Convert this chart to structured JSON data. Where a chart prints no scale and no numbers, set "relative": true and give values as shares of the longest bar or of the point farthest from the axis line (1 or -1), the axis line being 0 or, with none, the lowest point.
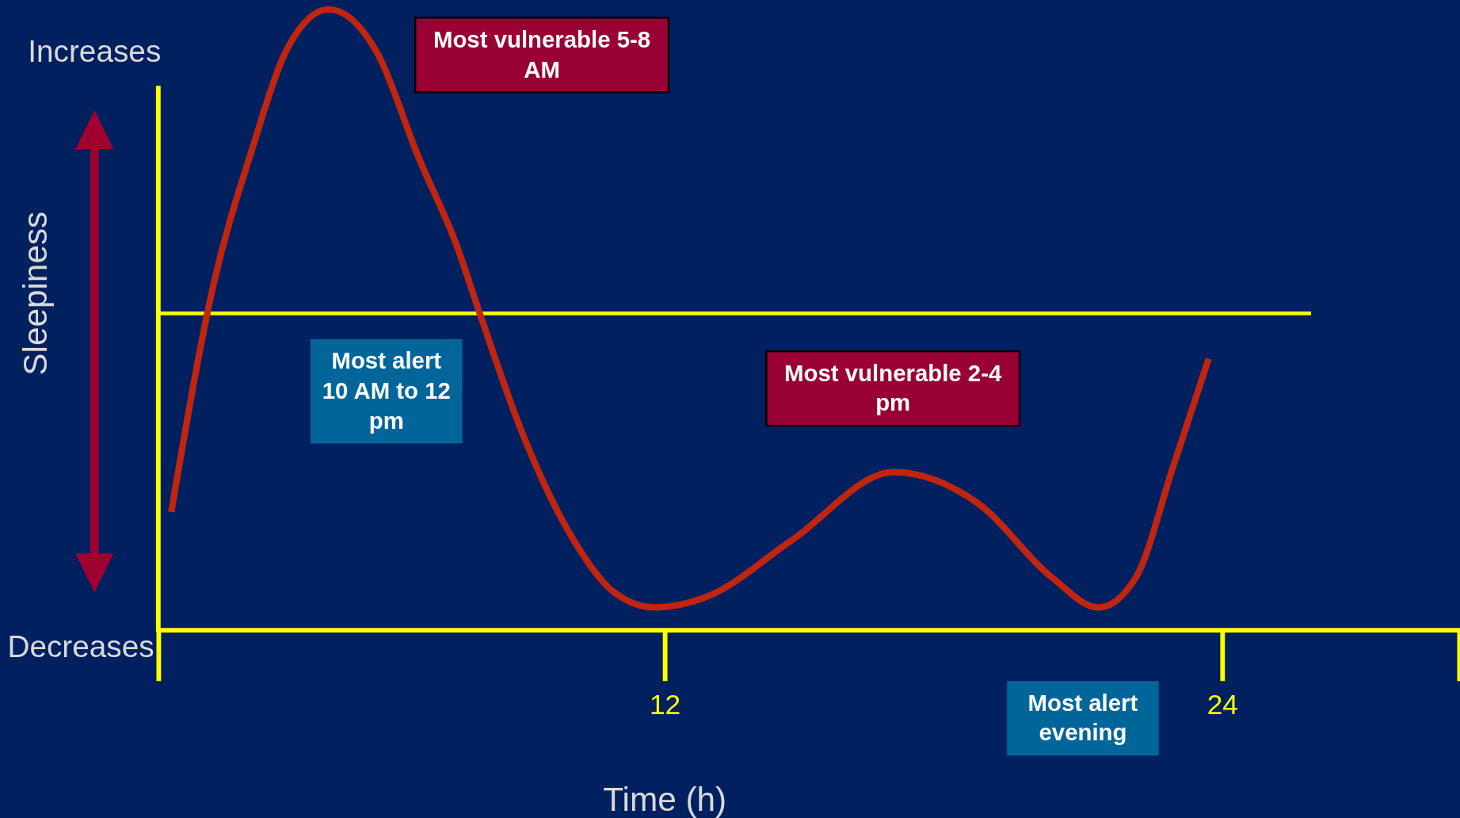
{
  "chart_data": {
    "type": "line",
    "relative": true,
    "xlabel": "Time (h)",
    "ylabel": "Sleepiness",
    "xlim": [
      1.1,
      29.1
    ],
    "xticks": [
      12,
      24
    ],
    "tick_labels": "x",
    "grid": false,
    "marker": "none",
    "line_style": "solid",
    "series": [
      {
        "color": "#c0250f",
        "x": [
          1.38,
          2.3,
          3.1,
          3.9,
          4.77,
          5.81,
          6.71,
          7.52,
          8.02,
          8.92,
          9.92,
          10.92,
          11.78,
          12.93,
          14.73,
          16.93,
          18.74,
          20.34,
          21.34,
          22.14,
          22.95,
          23.71
        ],
        "values": [
          0.19,
          0.56,
          0.77,
          0.94,
          1.0,
          0.93,
          0.76,
          0.62,
          0.51,
          0.32,
          0.16,
          0.06,
          0.036,
          0.054,
          0.144,
          0.254,
          0.204,
          0.084,
          0.036,
          0.084,
          0.264,
          0.437
        ]
      }
    ],
    "ref_lines": [
      {
        "axis": "y",
        "value": 0.51,
        "color": "#ffff00"
      }
    ],
    "annotations": [
      "Increases",
      "Decreases",
      "Most vulnerable 5-8 AM",
      "Most alert 10 AM to 12 pm",
      "Most vulnerable 2-4 pm",
      "Most alert evening"
    ]
  }
}
